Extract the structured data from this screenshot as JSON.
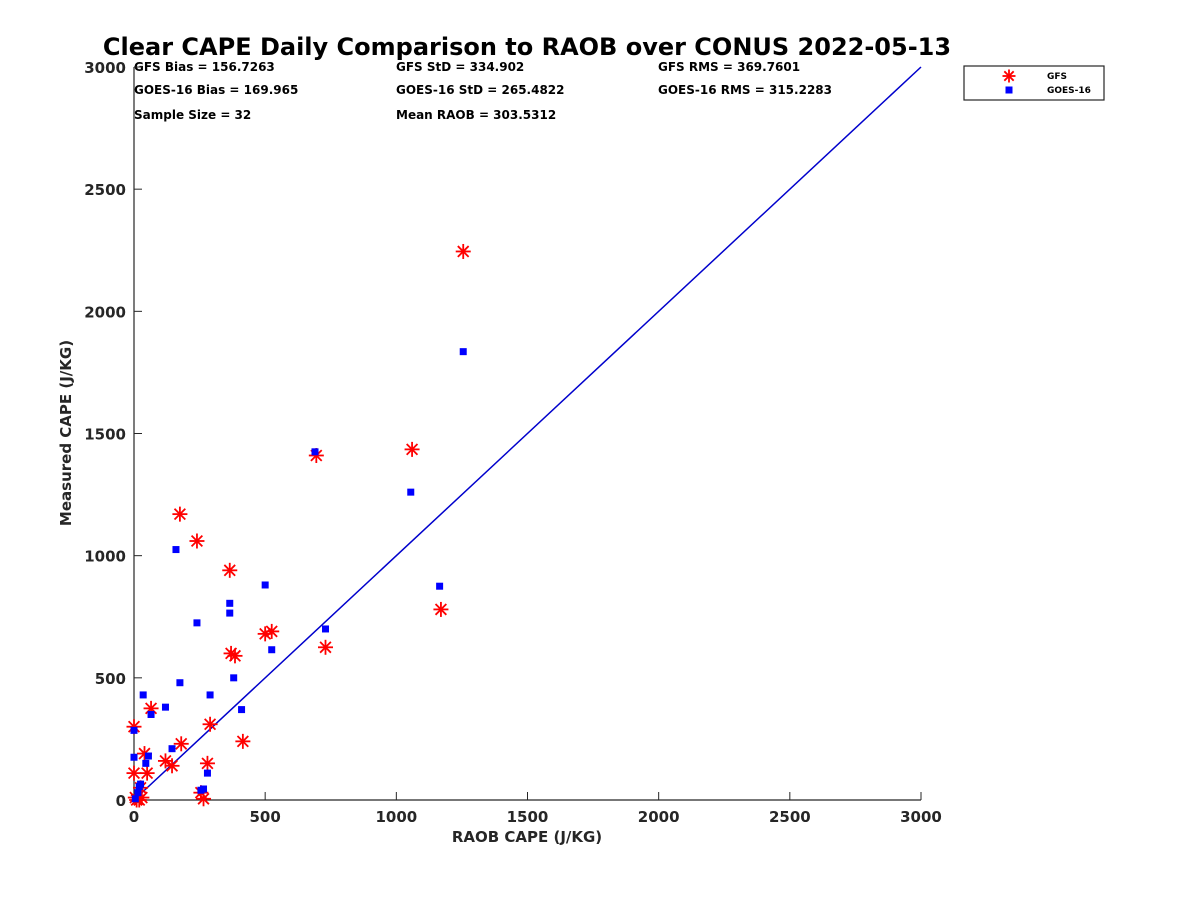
{
  "chart_data": {
    "type": "scatter",
    "title": "Clear CAPE Daily Comparison to RAOB over CONUS 2022-05-13",
    "xlabel": "RAOB CAPE (J/KG)",
    "ylabel": "Measured CAPE (J/KG)",
    "xlim": [
      0,
      3000
    ],
    "ylim": [
      0,
      3000
    ],
    "xticks": [
      "0",
      "500",
      "1000",
      "1500",
      "2000",
      "2500",
      "3000"
    ],
    "yticks": [
      "0",
      "500",
      "1000",
      "1500",
      "2000",
      "2500",
      "3000"
    ],
    "grid": false,
    "legend_position": "top-right",
    "stats": [
      [
        "GFS Bias = 156.7263",
        "GFS StD = 334.902",
        "GFS RMS = 369.7601"
      ],
      [
        "GOES-16 Bias = 169.965",
        "GOES-16 StD = 265.4822",
        "GOES-16 RMS = 315.2283"
      ],
      [
        "Sample Size = 32",
        "Mean RAOB = 303.5312",
        ""
      ]
    ],
    "reference_line": {
      "x": [
        0,
        3000
      ],
      "y": [
        0,
        3000
      ],
      "color": "#0000cc"
    },
    "series": [
      {
        "name": "GFS",
        "marker": "asterisk",
        "color": "#ff0000",
        "points": [
          [
            0,
            300
          ],
          [
            0,
            110
          ],
          [
            5,
            10
          ],
          [
            10,
            0
          ],
          [
            20,
            0
          ],
          [
            25,
            50
          ],
          [
            30,
            10
          ],
          [
            40,
            190
          ],
          [
            50,
            110
          ],
          [
            65,
            375
          ],
          [
            120,
            160
          ],
          [
            145,
            140
          ],
          [
            175,
            1170
          ],
          [
            180,
            230
          ],
          [
            240,
            1060
          ],
          [
            255,
            30
          ],
          [
            265,
            5
          ],
          [
            280,
            150
          ],
          [
            290,
            310
          ],
          [
            365,
            940
          ],
          [
            370,
            600
          ],
          [
            385,
            590
          ],
          [
            415,
            240
          ],
          [
            500,
            680
          ],
          [
            525,
            690
          ],
          [
            695,
            1410
          ],
          [
            730,
            625
          ],
          [
            1060,
            1435
          ],
          [
            1170,
            780
          ],
          [
            1255,
            2245
          ]
        ]
      },
      {
        "name": "GOES-16",
        "marker": "square",
        "color": "#0000ff",
        "points": [
          [
            0,
            285
          ],
          [
            0,
            175
          ],
          [
            5,
            5
          ],
          [
            15,
            30
          ],
          [
            20,
            55
          ],
          [
            25,
            65
          ],
          [
            35,
            430
          ],
          [
            45,
            150
          ],
          [
            55,
            180
          ],
          [
            65,
            350
          ],
          [
            120,
            380
          ],
          [
            145,
            210
          ],
          [
            160,
            1025
          ],
          [
            175,
            480
          ],
          [
            240,
            725
          ],
          [
            255,
            40
          ],
          [
            265,
            45
          ],
          [
            280,
            110
          ],
          [
            290,
            430
          ],
          [
            365,
            805
          ],
          [
            365,
            765
          ],
          [
            380,
            500
          ],
          [
            410,
            370
          ],
          [
            500,
            880
          ],
          [
            525,
            615
          ],
          [
            690,
            1425
          ],
          [
            730,
            700
          ],
          [
            1055,
            1260
          ],
          [
            1165,
            875
          ],
          [
            1255,
            1835
          ]
        ]
      }
    ]
  }
}
